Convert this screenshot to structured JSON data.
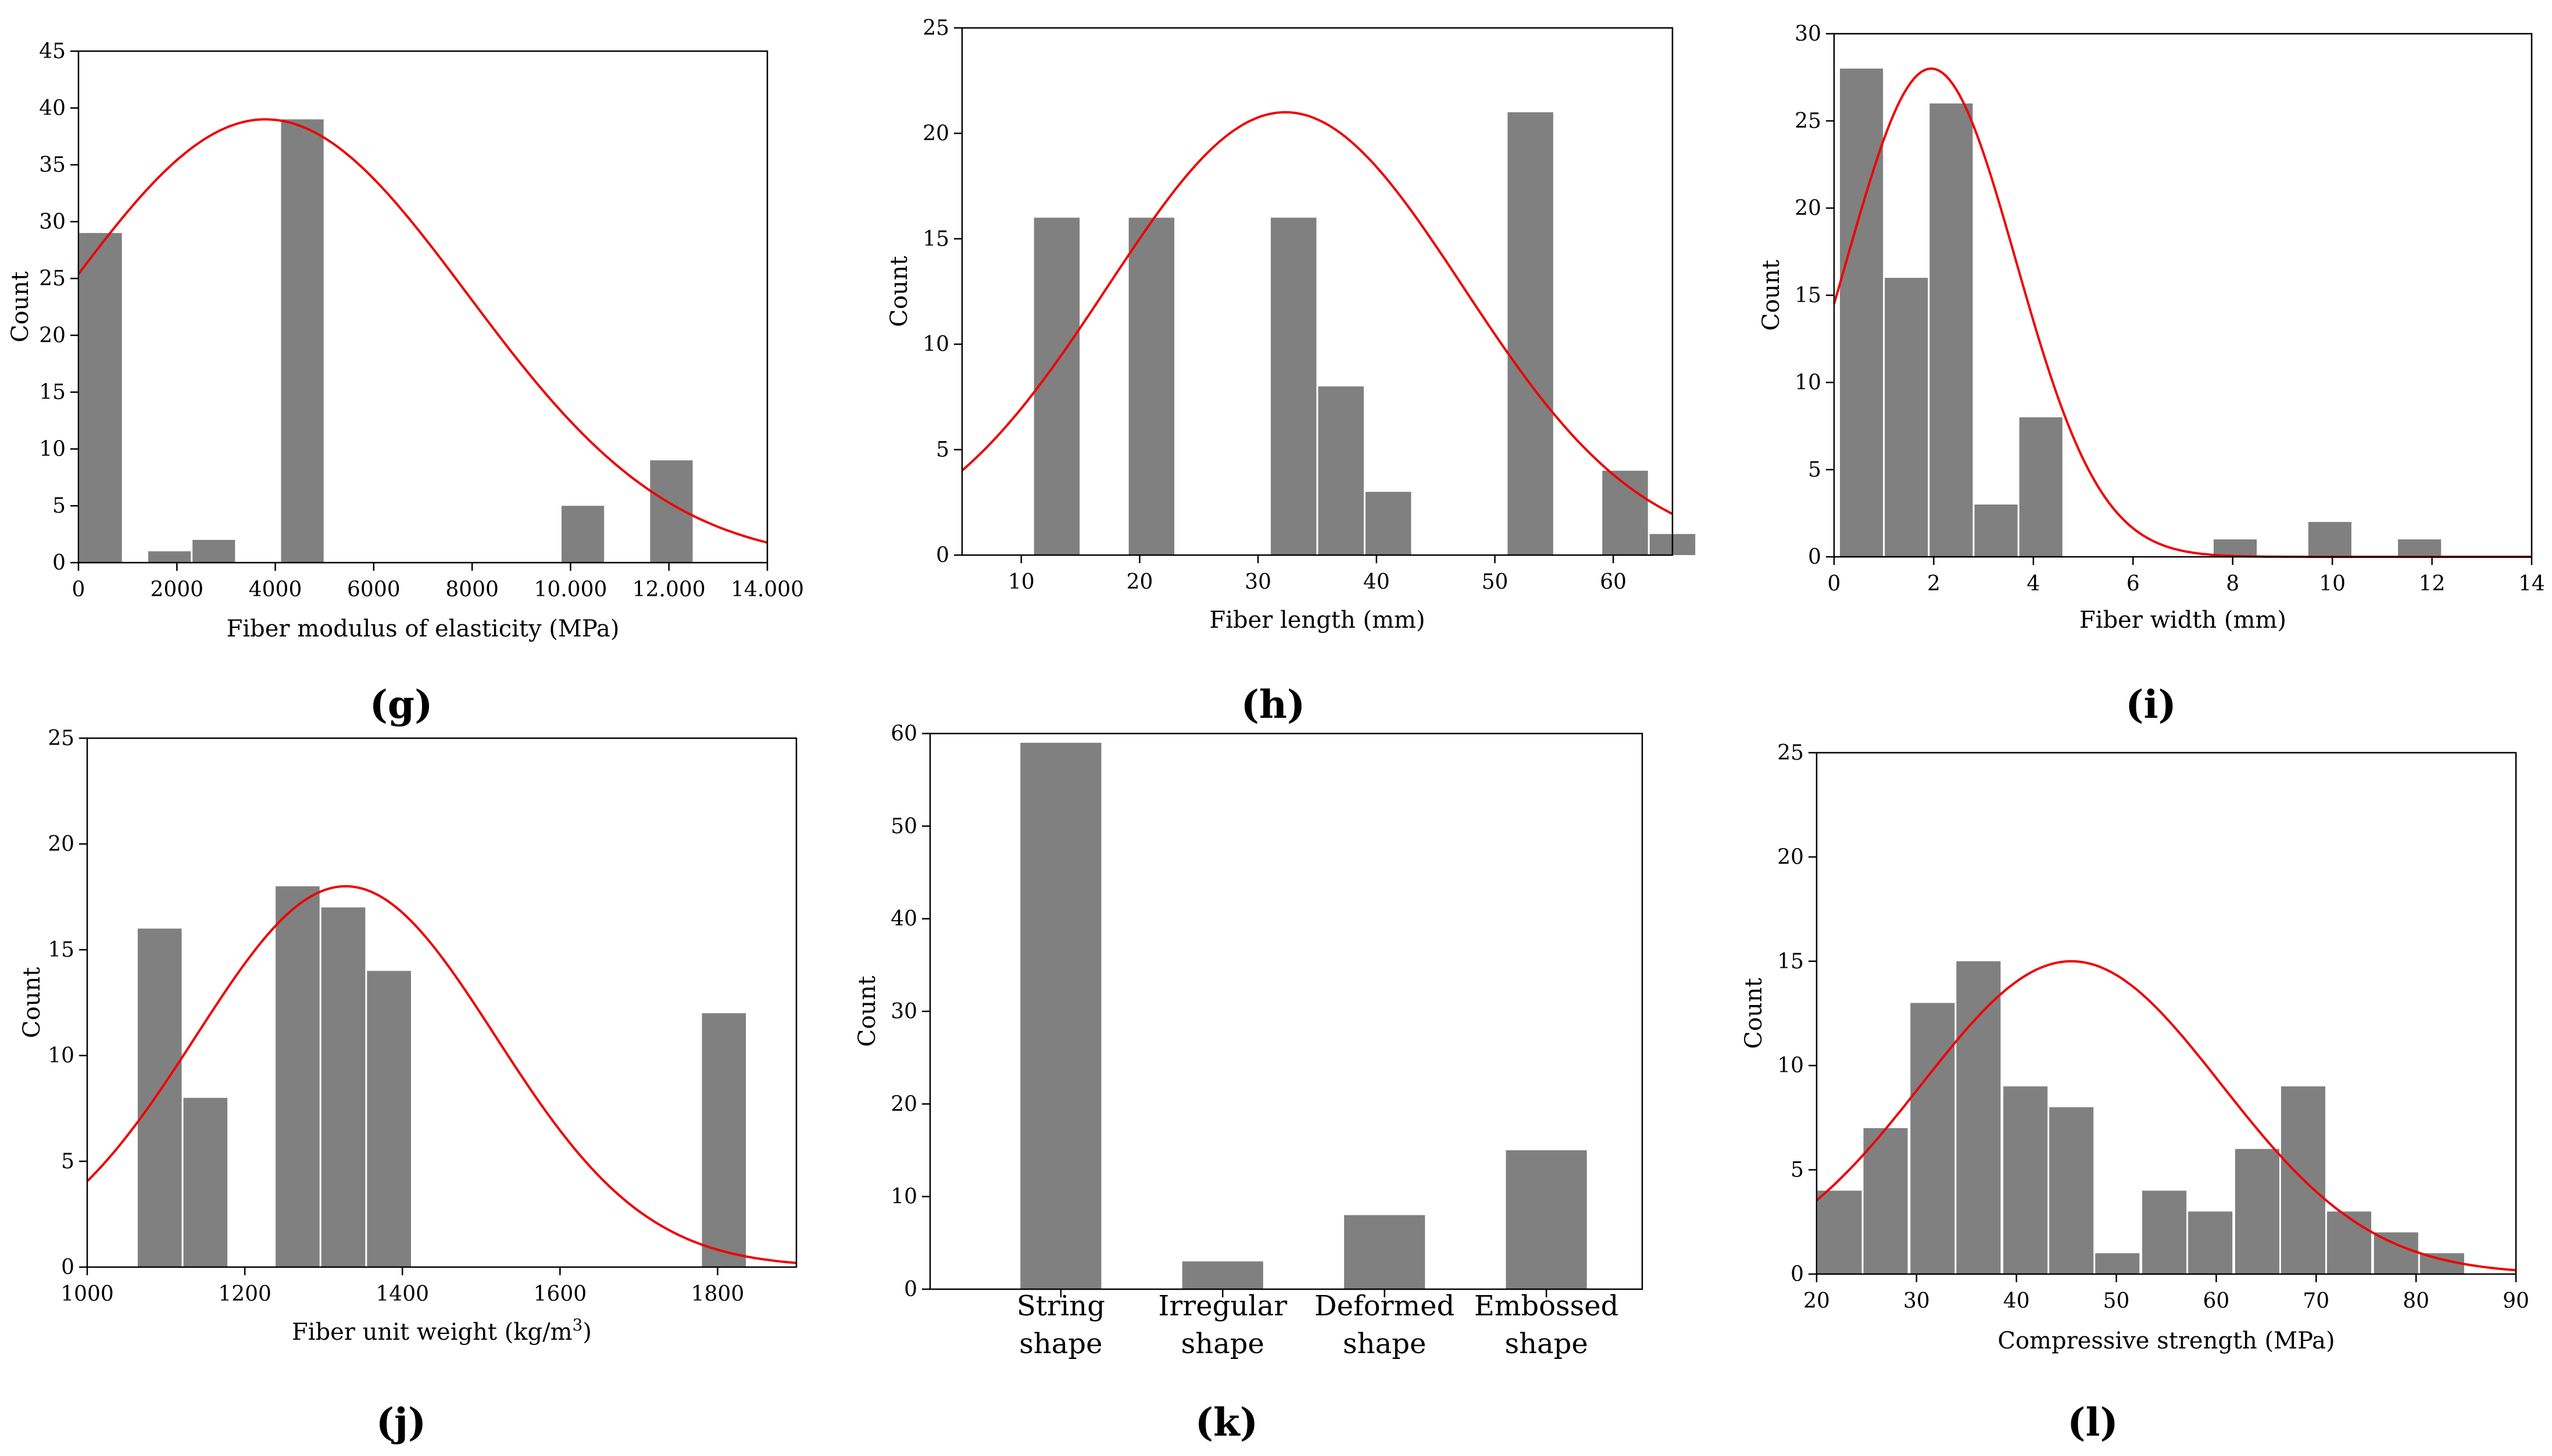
{
  "colors": {
    "bar": "#808080",
    "curve": "#ee0000",
    "axis": "#000000"
  },
  "chart_data": [
    {
      "panel": "(g)",
      "type": "histogram",
      "xlabel": "Fiber modulus of elasticity (MPa)",
      "ylabel": "Count",
      "xlim": [
        0,
        14000
      ],
      "ylim": [
        0,
        45
      ],
      "xticks": [
        0,
        2000,
        4000,
        6000,
        8000,
        10000,
        12000,
        14000
      ],
      "xtick_labels": [
        "0",
        "2000",
        "4000",
        "6000",
        "8000",
        "10.000",
        "12.000",
        "14.000"
      ],
      "yticks": [
        0,
        5,
        10,
        15,
        20,
        25,
        30,
        35,
        40,
        45
      ],
      "bin_width": 900,
      "bins": [
        {
          "x": 0,
          "value": 29
        },
        {
          "x": 1400,
          "value": 1
        },
        {
          "x": 2300,
          "value": 2
        },
        {
          "x": 4100,
          "value": 39
        },
        {
          "x": 9800,
          "value": 5
        },
        {
          "x": 11600,
          "value": 9
        }
      ],
      "curve": {
        "mean": 3800,
        "sd": 4100,
        "peak": 39
      }
    },
    {
      "panel": "(h)",
      "type": "histogram",
      "xlabel": "Fiber length (mm)",
      "ylabel": "Count",
      "xlim": [
        5,
        65
      ],
      "ylim": [
        0,
        25
      ],
      "xticks": [
        10,
        20,
        30,
        40,
        50,
        60
      ],
      "xtick_labels": [
        "10",
        "20",
        "30",
        "40",
        "50",
        "60"
      ],
      "yticks": [
        0,
        5,
        10,
        15,
        20,
        25
      ],
      "bin_width": 4,
      "bins": [
        {
          "x": 11,
          "value": 16
        },
        {
          "x": 19,
          "value": 16
        },
        {
          "x": 31,
          "value": 16
        },
        {
          "x": 35,
          "value": 8
        },
        {
          "x": 39,
          "value": 3
        },
        {
          "x": 51,
          "value": 21
        },
        {
          "x": 59,
          "value": 4
        },
        {
          "x": 63,
          "value": 1
        }
      ],
      "curve": {
        "mean": 32.3,
        "sd": 15,
        "peak": 21
      }
    },
    {
      "panel": "(i)",
      "type": "histogram",
      "xlabel": "Fiber width (mm)",
      "ylabel": "Count",
      "xlim": [
        0,
        14
      ],
      "ylim": [
        0,
        30
      ],
      "xticks": [
        0,
        2,
        4,
        6,
        8,
        10,
        12,
        14
      ],
      "xtick_labels": [
        "0",
        "2",
        "4",
        "6",
        "8",
        "10",
        "12",
        "14"
      ],
      "yticks": [
        0,
        5,
        10,
        15,
        20,
        25,
        30
      ],
      "bin_width": 0.9,
      "bins": [
        {
          "x": 0.1,
          "value": 28
        },
        {
          "x": 1.0,
          "value": 16
        },
        {
          "x": 1.9,
          "value": 26
        },
        {
          "x": 2.8,
          "value": 3
        },
        {
          "x": 3.7,
          "value": 8
        },
        {
          "x": 7.6,
          "value": 1
        },
        {
          "x": 9.5,
          "value": 2
        },
        {
          "x": 11.3,
          "value": 1
        }
      ],
      "curve": {
        "mean": 1.95,
        "sd": 1.7,
        "peak": 28
      }
    },
    {
      "panel": "(j)",
      "type": "histogram",
      "xlabel": "Fiber unit weight (kg/m",
      "xlabel_sup": "3",
      "xlabel_end": ")",
      "ylabel": "Count",
      "xlim": [
        1000,
        1900
      ],
      "ylim": [
        0,
        25
      ],
      "xticks": [
        1000,
        1200,
        1400,
        1600,
        1800
      ],
      "xtick_labels": [
        "1000",
        "1200",
        "1400",
        "1600",
        "1800"
      ],
      "yticks": [
        0,
        5,
        10,
        15,
        20,
        25
      ],
      "bin_width": 58,
      "bins": [
        {
          "x": 1063,
          "value": 16
        },
        {
          "x": 1121,
          "value": 8
        },
        {
          "x": 1238,
          "value": 18
        },
        {
          "x": 1296,
          "value": 17
        },
        {
          "x": 1354,
          "value": 14
        },
        {
          "x": 1779,
          "value": 12
        }
      ],
      "curve": {
        "mean": 1328,
        "sd": 190,
        "peak": 18
      }
    },
    {
      "panel": "(k)",
      "type": "bar",
      "ylabel": "Count",
      "ylim": [
        0,
        60
      ],
      "yticks": [
        0,
        10,
        20,
        30,
        40,
        50,
        60
      ],
      "categories": [
        {
          "line1": "String",
          "line2": "shape",
          "value": 59
        },
        {
          "line1": "Irregular",
          "line2": "shape",
          "value": 3
        },
        {
          "line1": "Deformed",
          "line2": "shape",
          "value": 8
        },
        {
          "line1": "Embossed",
          "line2": "shape",
          "value": 15
        }
      ]
    },
    {
      "panel": "(l)",
      "type": "histogram",
      "xlabel": "Compressive strength (MPa)",
      "ylabel": "Count",
      "xlim": [
        20,
        90
      ],
      "ylim": [
        0,
        25
      ],
      "xticks": [
        20,
        30,
        40,
        50,
        60,
        70,
        80,
        90
      ],
      "xtick_labels": [
        "20",
        "30",
        "40",
        "50",
        "60",
        "70",
        "80",
        "90"
      ],
      "yticks": [
        0,
        5,
        10,
        15,
        20,
        25
      ],
      "bin_width": 4.6,
      "bins": [
        {
          "x": 20,
          "value": 4
        },
        {
          "x": 24.6,
          "value": 7
        },
        {
          "x": 29.3,
          "value": 13
        },
        {
          "x": 33.9,
          "value": 15
        },
        {
          "x": 38.6,
          "value": 9
        },
        {
          "x": 43.2,
          "value": 8
        },
        {
          "x": 47.8,
          "value": 1
        },
        {
          "x": 52.5,
          "value": 4
        },
        {
          "x": 57.1,
          "value": 3
        },
        {
          "x": 61.8,
          "value": 6
        },
        {
          "x": 66.4,
          "value": 9
        },
        {
          "x": 71.0,
          "value": 3
        },
        {
          "x": 75.7,
          "value": 2
        },
        {
          "x": 80.3,
          "value": 1
        }
      ],
      "curve": {
        "mean": 45.5,
        "sd": 15,
        "peak": 15
      }
    }
  ]
}
